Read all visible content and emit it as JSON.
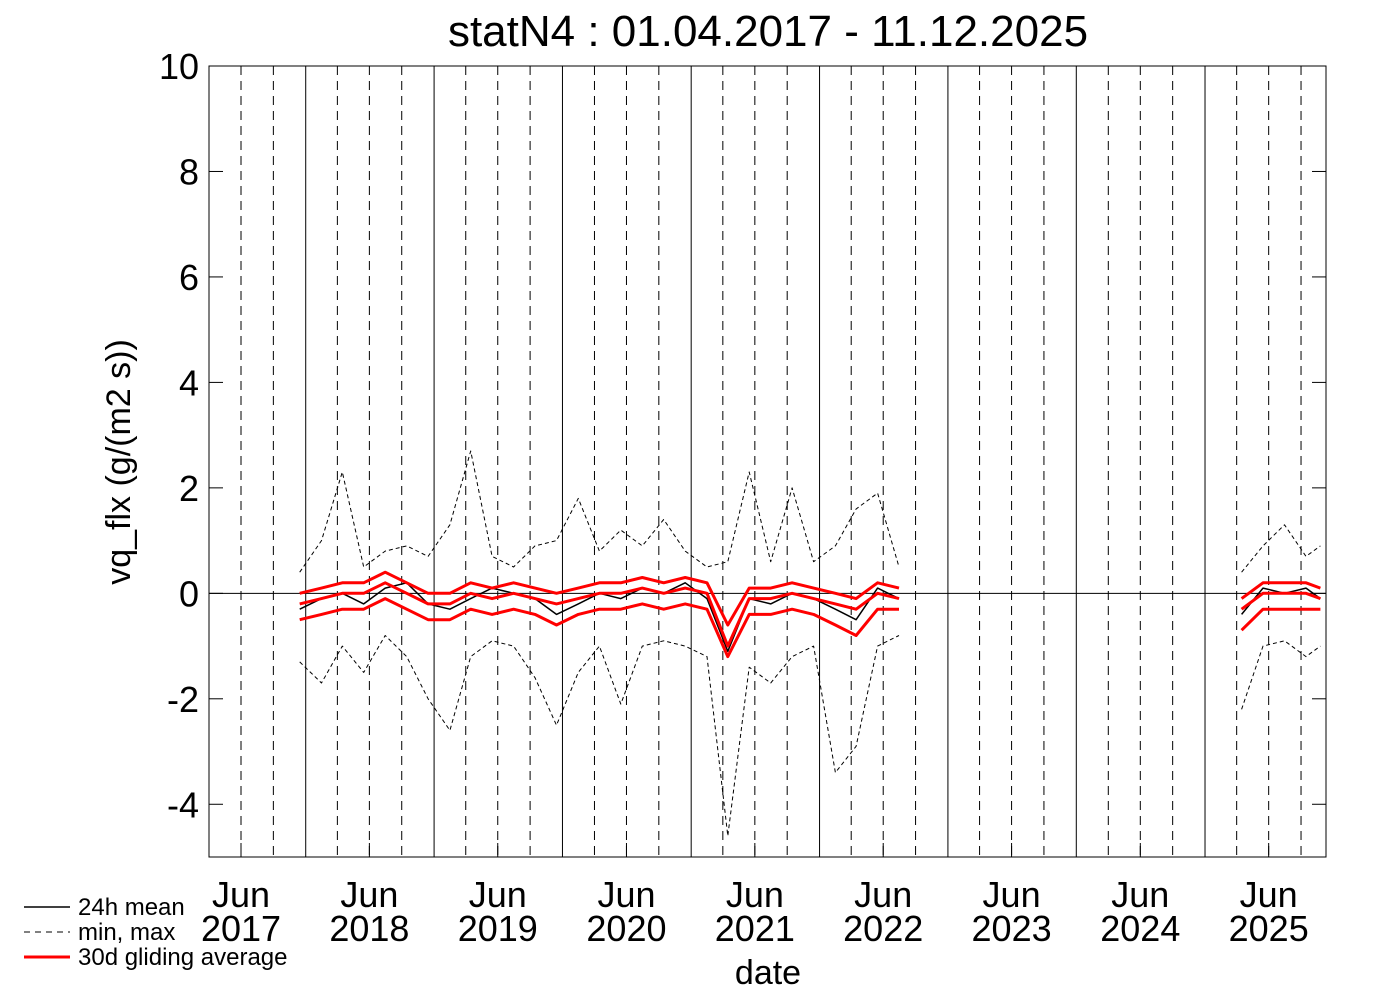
{
  "chart_data": {
    "type": "line",
    "title": "statN4 : 01.04.2017 - 11.12.2025",
    "x_label": "date",
    "y_label": "vq_flx (g/(m2 s))",
    "xlim": [
      "2017-04-01",
      "2025-12-11"
    ],
    "ylim": [
      -5,
      10
    ],
    "yticks": [
      -4,
      -2,
      0,
      2,
      4,
      6,
      8,
      10
    ],
    "xticks": [
      {
        "value": "2017-07-01",
        "label": "Jun 2017"
      },
      {
        "value": "2018-07-01",
        "label": "Jun 2018"
      },
      {
        "value": "2019-07-01",
        "label": "Jun 2019"
      },
      {
        "value": "2020-07-01",
        "label": "Jun 2020"
      },
      {
        "value": "2021-07-01",
        "label": "Jun 2021"
      },
      {
        "value": "2022-07-01",
        "label": "Jun 2022"
      },
      {
        "value": "2023-07-01",
        "label": "Jun 2023"
      },
      {
        "value": "2024-07-01",
        "label": "Jun 2024"
      },
      {
        "value": "2025-07-01",
        "label": "Jun 2025"
      }
    ],
    "xgrid_major": [
      "2018-01-01",
      "2019-01-01",
      "2020-01-01",
      "2021-01-01",
      "2022-01-01",
      "2023-01-01",
      "2024-01-01",
      "2025-01-01"
    ],
    "xgrid_minor": [
      "2017-07-01",
      "2017-10-01",
      "2018-04-01",
      "2018-07-01",
      "2018-10-01",
      "2019-04-01",
      "2019-07-01",
      "2019-10-01",
      "2020-04-01",
      "2020-07-01",
      "2020-10-01",
      "2021-04-01",
      "2021-07-01",
      "2021-10-01",
      "2022-04-01",
      "2022-07-01",
      "2022-10-01",
      "2023-04-01",
      "2023-07-01",
      "2023-10-01",
      "2024-04-01",
      "2024-07-01",
      "2024-10-01",
      "2025-04-01",
      "2025-07-01",
      "2025-10-01"
    ],
    "reference_line": 0,
    "x": [
      "2017-12-15",
      "2018-02-15",
      "2018-04-15",
      "2018-06-15",
      "2018-08-15",
      "2018-10-15",
      "2018-12-15",
      "2019-02-15",
      "2019-04-15",
      "2019-06-15",
      "2019-08-15",
      "2019-10-15",
      "2019-12-15",
      "2020-02-15",
      "2020-04-15",
      "2020-06-15",
      "2020-08-15",
      "2020-10-15",
      "2020-12-15",
      "2021-02-15",
      "2021-04-15",
      "2021-06-15",
      "2021-08-15",
      "2021-10-15",
      "2021-12-15",
      "2022-02-15",
      "2022-04-15",
      "2022-06-15",
      "2022-08-15",
      "2023-12-01",
      "2025-04-15",
      "2025-06-15",
      "2025-08-15",
      "2025-10-15",
      "2025-11-25"
    ],
    "series": [
      {
        "name": "24h mean",
        "color": "#000000",
        "style": "solid",
        "values": [
          -0.3,
          -0.1,
          0.0,
          -0.2,
          0.1,
          0.2,
          -0.2,
          -0.3,
          -0.1,
          0.1,
          0.0,
          -0.1,
          -0.4,
          -0.2,
          0.0,
          -0.1,
          0.1,
          0.0,
          0.2,
          -0.1,
          -1.1,
          -0.1,
          -0.2,
          0.0,
          -0.1,
          -0.3,
          -0.5,
          0.1,
          -0.1,
          null,
          -0.4,
          0.1,
          0.0,
          0.1,
          -0.1
        ]
      },
      {
        "name": "min, max",
        "color": "#000000",
        "style": "dashed",
        "values": [
          -1.3,
          -1.7,
          -1.0,
          -1.5,
          -0.8,
          -1.2,
          -2.0,
          -2.6,
          -1.2,
          -0.9,
          -1.0,
          -1.6,
          -2.5,
          -1.5,
          -1.0,
          -2.1,
          -1.0,
          -0.9,
          -1.0,
          -1.2,
          -4.6,
          -1.4,
          -1.7,
          -1.2,
          -1.0,
          -3.4,
          -2.9,
          -1.0,
          -0.8,
          null,
          -2.2,
          -1.0,
          -0.9,
          -1.2,
          -1.0
        ],
        "values_max": [
          0.4,
          1.0,
          2.3,
          0.5,
          0.8,
          0.9,
          0.7,
          1.3,
          2.7,
          0.7,
          0.5,
          0.9,
          1.0,
          1.8,
          0.8,
          1.2,
          0.9,
          1.4,
          0.8,
          0.5,
          0.6,
          2.3,
          0.6,
          2.0,
          0.6,
          0.9,
          1.6,
          1.9,
          0.5,
          null,
          0.4,
          0.9,
          1.3,
          0.7,
          0.9
        ]
      },
      {
        "name": "30d gliding average",
        "color": "#ff0000",
        "style": "thick",
        "values": [
          -0.2,
          -0.1,
          0.0,
          0.0,
          0.2,
          0.0,
          -0.2,
          -0.2,
          0.0,
          -0.1,
          0.0,
          -0.1,
          -0.2,
          -0.1,
          0.0,
          0.0,
          0.1,
          0.0,
          0.1,
          0.0,
          -1.0,
          -0.1,
          -0.1,
          0.0,
          -0.1,
          -0.2,
          -0.3,
          0.0,
          -0.1,
          null,
          -0.3,
          0.0,
          0.0,
          0.0,
          -0.1
        ],
        "values_min": [
          -0.5,
          -0.4,
          -0.3,
          -0.3,
          -0.1,
          -0.3,
          -0.5,
          -0.5,
          -0.3,
          -0.4,
          -0.3,
          -0.4,
          -0.6,
          -0.4,
          -0.3,
          -0.3,
          -0.2,
          -0.3,
          -0.2,
          -0.3,
          -1.2,
          -0.4,
          -0.4,
          -0.3,
          -0.4,
          -0.6,
          -0.8,
          -0.3,
          -0.3,
          null,
          -0.7,
          -0.3,
          -0.3,
          -0.3,
          -0.3
        ],
        "values_max": [
          0.0,
          0.1,
          0.2,
          0.2,
          0.4,
          0.2,
          0.0,
          0.0,
          0.2,
          0.1,
          0.2,
          0.1,
          0.0,
          0.1,
          0.2,
          0.2,
          0.3,
          0.2,
          0.3,
          0.2,
          -0.6,
          0.1,
          0.1,
          0.2,
          0.1,
          0.0,
          -0.1,
          0.2,
          0.1,
          null,
          -0.1,
          0.2,
          0.2,
          0.2,
          0.1
        ]
      }
    ]
  }
}
